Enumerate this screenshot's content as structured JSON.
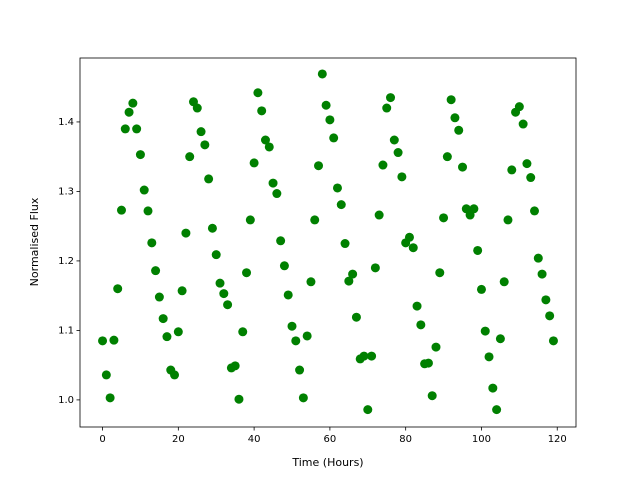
{
  "chart_data": {
    "type": "scatter",
    "xlabel": "Time (Hours)",
    "ylabel": "Normalised Flux",
    "x": [
      0,
      1,
      2,
      3,
      4,
      5,
      6,
      7,
      8,
      9,
      10,
      11,
      12,
      13,
      14,
      15,
      16,
      17,
      18,
      19,
      20,
      21,
      22,
      23,
      24,
      25,
      26,
      27,
      28,
      29,
      30,
      31,
      32,
      33,
      34,
      35,
      36,
      37,
      38,
      39,
      40,
      41,
      42,
      43,
      44,
      45,
      46,
      47,
      48,
      49,
      50,
      51,
      52,
      53,
      54,
      55,
      56,
      57,
      58,
      59,
      60,
      61,
      62,
      63,
      64,
      65,
      66,
      67,
      68,
      69,
      70,
      71,
      72,
      73,
      74,
      75,
      76,
      77,
      78,
      79,
      80,
      81,
      82,
      83,
      84,
      85,
      86,
      87,
      88,
      89,
      90,
      91,
      92,
      93,
      94,
      95,
      96,
      97,
      98,
      99,
      100,
      101,
      102,
      103,
      104,
      105,
      106,
      107,
      108,
      109,
      110,
      111,
      112,
      113,
      114,
      115,
      116,
      117,
      118,
      119
    ],
    "values": [
      1.085,
      1.036,
      1.003,
      1.086,
      1.16,
      1.273,
      1.39,
      1.414,
      1.427,
      1.39,
      1.353,
      1.302,
      1.272,
      1.226,
      1.186,
      1.148,
      1.117,
      1.091,
      1.043,
      1.036,
      1.098,
      1.157,
      1.24,
      1.35,
      1.429,
      1.42,
      1.386,
      1.367,
      1.318,
      1.247,
      1.209,
      1.168,
      1.153,
      1.137,
      1.046,
      1.049,
      1.001,
      1.098,
      1.183,
      1.259,
      1.341,
      1.442,
      1.416,
      1.374,
      1.364,
      1.312,
      1.297,
      1.229,
      1.193,
      1.151,
      1.106,
      1.085,
      1.043,
      1.003,
      1.092,
      1.17,
      1.259,
      1.337,
      1.469,
      1.424,
      1.403,
      1.377,
      1.305,
      1.281,
      1.225,
      1.171,
      1.181,
      1.119,
      1.059,
      1.063,
      0.986,
      1.063,
      1.19,
      1.266,
      1.338,
      1.42,
      1.435,
      1.374,
      1.356,
      1.321,
      1.226,
      1.234,
      1.219,
      1.135,
      1.108,
      1.052,
      1.053,
      1.006,
      1.076,
      1.183,
      1.262,
      1.35,
      1.432,
      1.406,
      1.388,
      1.335,
      1.275,
      1.266,
      1.275,
      1.215,
      1.159,
      1.099,
      1.062,
      1.017,
      0.986,
      1.088,
      1.17,
      1.259,
      1.331,
      1.414,
      1.422,
      1.397,
      1.34,
      1.32,
      1.272,
      1.204,
      1.181,
      1.144,
      1.121,
      1.085
    ],
    "color": "#008000",
    "xlim": [
      -5.95,
      124.95
    ],
    "xticks": [
      0,
      20,
      40,
      60,
      80,
      100,
      120
    ],
    "ylim": [
      0.961,
      1.492
    ],
    "yticks": [
      {
        "value": 1,
        "label": "1.0"
      },
      1.1,
      1.2,
      1.3,
      1.4
    ]
  }
}
